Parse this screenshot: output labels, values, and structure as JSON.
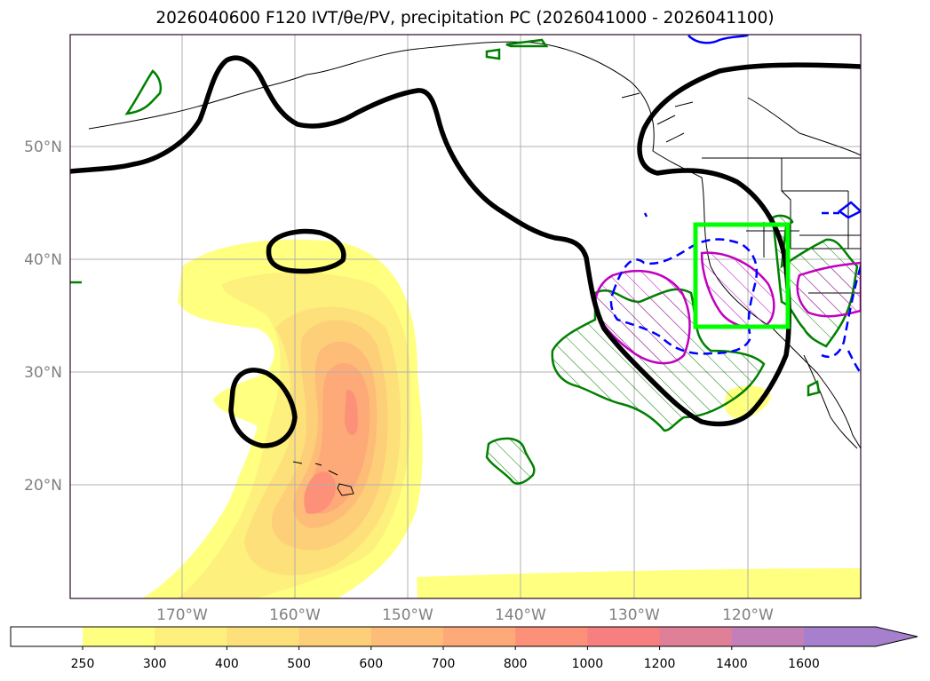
{
  "title": "2026040600 F120 IVT/θe/PV, precipitation PC (2026041000 - 2026041100)",
  "map": {
    "lat_labels": [
      "50°N",
      "40°N",
      "30°N",
      "20°N"
    ],
    "lon_labels": [
      "170°W",
      "160°W",
      "150°W",
      "140°W",
      "130°W",
      "120°W"
    ],
    "lat_range": [
      10,
      60
    ],
    "lon_range": [
      -180,
      -110
    ],
    "gridlines": true
  },
  "colorbar": {
    "ticks": [
      "250",
      "300",
      "400",
      "500",
      "600",
      "700",
      "800",
      "1000",
      "1200",
      "1400",
      "1600"
    ],
    "colors": [
      "#ffff80",
      "#fdf07c",
      "#fde07a",
      "#fdcf78",
      "#fdbd78",
      "#fda978",
      "#fd9078",
      "#f77f80",
      "#e07f98",
      "#c380b8",
      "#a67fcd"
    ],
    "extend": "max"
  },
  "colors": {
    "pv_contour": "#000000",
    "theta_e_contour": "#0000ff",
    "precip_pc_contour": "#008000",
    "precip_magenta": "#c000c0",
    "box": "#00ff00",
    "gridline": "#b0b0b0",
    "coastline": "#000000"
  },
  "features": {
    "highlight_box": "bright green rectangle over California",
    "hatched_regions": [
      "precipitation region off California",
      "magenta contour regions"
    ]
  }
}
